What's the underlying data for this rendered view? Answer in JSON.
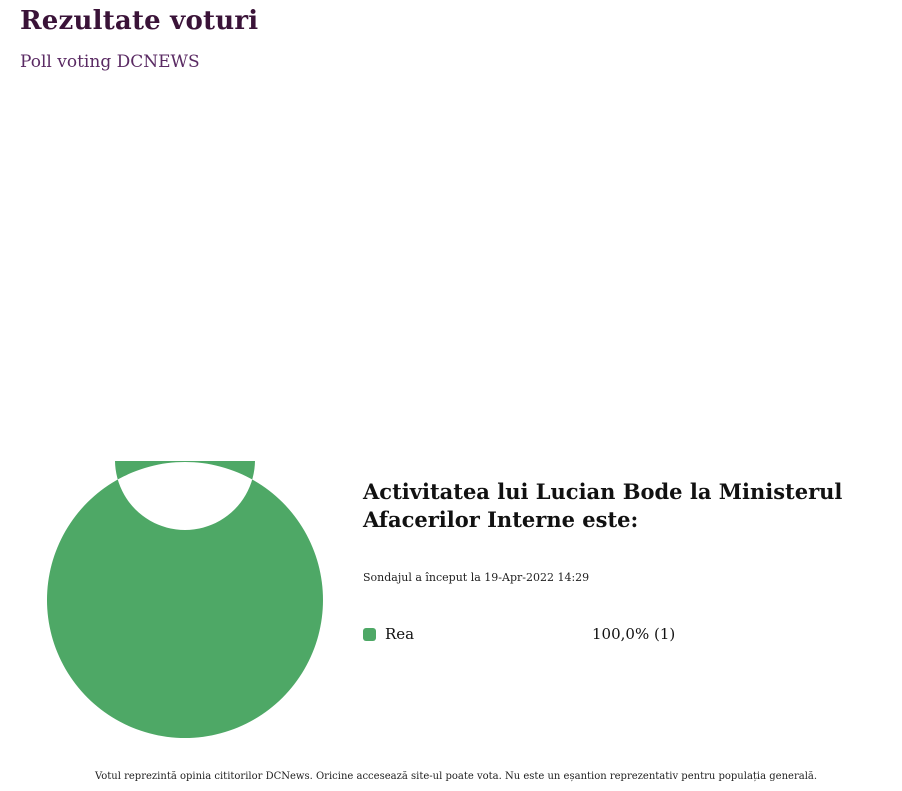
{
  "header": {
    "title": "Rezultate voturi",
    "subtitle": "Poll voting DCNEWS"
  },
  "poll": {
    "question": "Activitatea lui Lucian Bode la Ministerul Afacerilor Interne este:",
    "started": "Sondajul a început la 19-Apr-2022 14:29"
  },
  "chart_data": {
    "type": "pie",
    "variant": "donut",
    "categories": [
      "Rea"
    ],
    "values": [
      100.0
    ],
    "value_labels": [
      "100,0% (1)"
    ],
    "colors": [
      "#4ea866"
    ],
    "legend_placement": "right"
  },
  "footer": {
    "note": "Votul reprezintă opinia cititorilor DCNews. Oricine accesează site-ul poate vota. Nu este un eșantion reprezentativ pentru populația generală."
  }
}
